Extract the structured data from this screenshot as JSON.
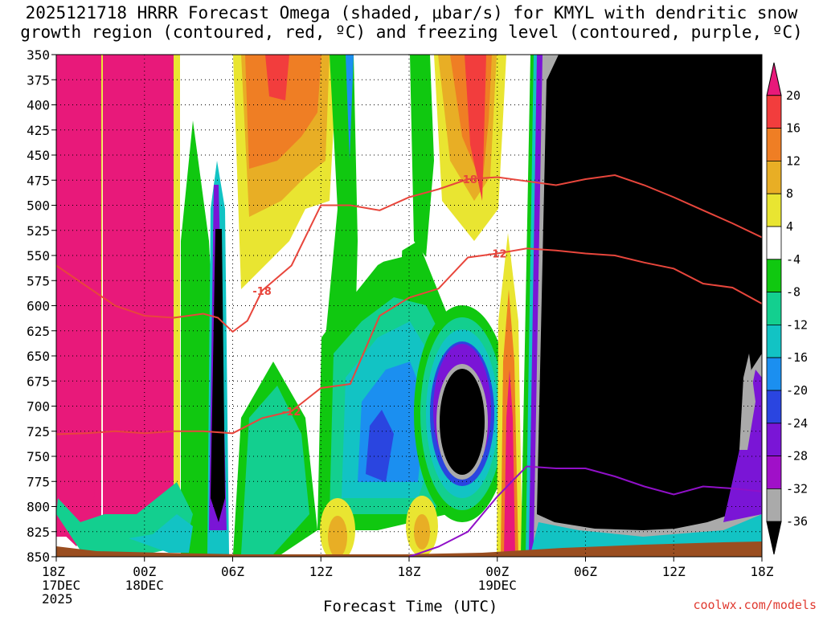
{
  "header": {
    "title_line1": "2025121718 HRRR Forecast Omega (shaded, μbar/s) for KMYL with dendritic snow",
    "title_line2": "growth region (contoured, red, ºC) and freezing level (contoured, purple, ºC)"
  },
  "footer": {
    "xlabel": "Forecast Time (UTC)",
    "credit": "coolwx.com/models"
  },
  "chart_data": {
    "type": "heatmap",
    "title": "2025121718 HRRR Forecast Omega (shaded, μbar/s) for KMYL with dendritic snow growth region (contoured, red, ºC) and freezing level (contoured, purple, ºC)",
    "xlabel": "Forecast Time (UTC)",
    "ylabel": "",
    "xlim": [
      0,
      48
    ],
    "ylim": [
      850,
      350
    ],
    "y_reversed": true,
    "grid": true,
    "x_ticks": [
      {
        "x": 0,
        "label": [
          "18Z",
          "17DEC",
          "2025"
        ]
      },
      {
        "x": 6,
        "label": [
          "00Z",
          "18DEC"
        ]
      },
      {
        "x": 12,
        "label": [
          "06Z"
        ]
      },
      {
        "x": 18,
        "label": [
          "12Z"
        ]
      },
      {
        "x": 24,
        "label": [
          "18Z"
        ]
      },
      {
        "x": 30,
        "label": [
          "00Z",
          "19DEC"
        ]
      },
      {
        "x": 36,
        "label": [
          "06Z"
        ]
      },
      {
        "x": 42,
        "label": [
          "12Z"
        ]
      },
      {
        "x": 48,
        "label": [
          "18Z"
        ]
      }
    ],
    "y_ticks": [
      350,
      375,
      400,
      425,
      450,
      475,
      500,
      525,
      550,
      575,
      600,
      625,
      650,
      675,
      700,
      725,
      750,
      775,
      800,
      825,
      850
    ],
    "colorbar": {
      "labels": [
        "20",
        "16",
        "12",
        "8",
        "4",
        "-4",
        "-8",
        "-12",
        "-16",
        "-20",
        "-24",
        "-28",
        "-32",
        "-36"
      ],
      "colors": [
        "#e8197a",
        "#f23d3d",
        "#ef7e24",
        "#e8ae25",
        "#e9e531",
        "#ffffff",
        "#10c810",
        "#13cf8f",
        "#12c3c4",
        "#1b8ff0",
        "#2a45e0",
        "#7a15d6",
        "#a010c8",
        "#aaaaaa",
        "#000000"
      ]
    },
    "series": [
      {
        "name": "",
        "kind": "dgz-contour-warm",
        "color": "#e8463c",
        "label_value": "-12",
        "x": [
          0,
          2,
          4,
          6,
          8,
          10,
          12,
          14,
          16,
          18,
          20,
          22,
          24,
          26,
          28,
          30,
          32,
          34,
          36,
          38,
          40,
          42,
          44,
          46,
          48
        ],
        "y": [
          728,
          727,
          725,
          727,
          725,
          725,
          727,
          712,
          705,
          682,
          678,
          610,
          592,
          583,
          552,
          548,
          543,
          545,
          548,
          550,
          557,
          563,
          578,
          582,
          598
        ]
      },
      {
        "name": "",
        "kind": "dgz-contour-cold",
        "color": "#e8463c",
        "label_value": "-18",
        "x": [
          0,
          2,
          4,
          6,
          8,
          10,
          11,
          12,
          13,
          14,
          16,
          18,
          20,
          22,
          24,
          26,
          28,
          30,
          32,
          34,
          36,
          38,
          40,
          42,
          44,
          46,
          48
        ],
        "y": [
          560,
          580,
          600,
          610,
          612,
          608,
          612,
          626,
          615,
          585,
          560,
          500,
          500,
          505,
          492,
          484,
          474,
          472,
          476,
          480,
          474,
          470,
          480,
          492,
          505,
          518,
          532
        ]
      },
      {
        "name": "",
        "kind": "freezing-level",
        "color": "#9010c8",
        "x": [
          24,
          26,
          28,
          30,
          32,
          34,
          36,
          38,
          40,
          42,
          44,
          46,
          48
        ],
        "y": [
          850,
          840,
          825,
          790,
          760,
          762,
          762,
          770,
          780,
          788,
          780,
          782,
          785
        ]
      }
    ]
  }
}
